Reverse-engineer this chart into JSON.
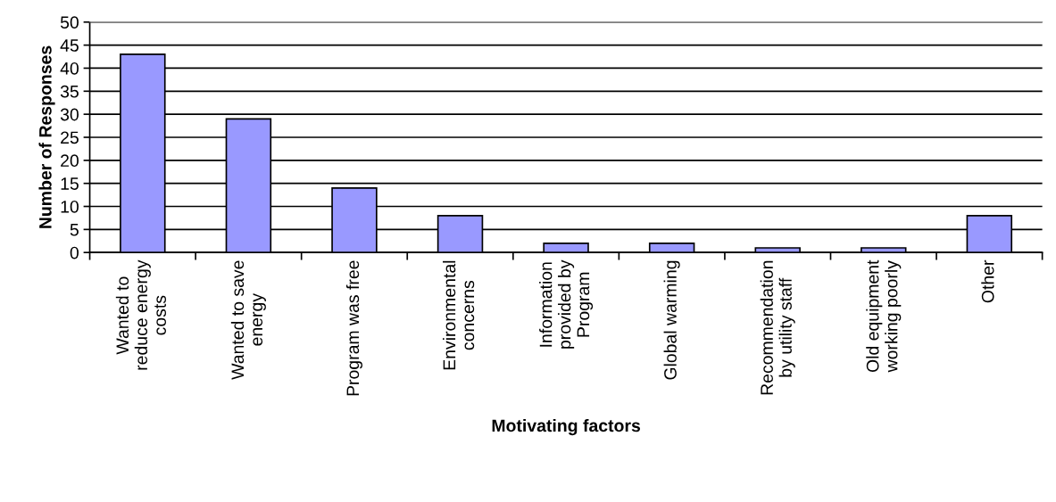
{
  "chart_data": {
    "type": "bar",
    "xlabel": "Motivating factors",
    "ylabel": "Number of Responses",
    "categories": [
      "Wanted to\nreduce energy\ncosts",
      "Wanted to save\nenergy",
      "Program was free",
      "Environmental\nconcerns",
      "Information\nprovided by\nProgram",
      "Global warming",
      "Recommendation\nby utility staff",
      "Old equipment\nworking poorly",
      "Other"
    ],
    "values": [
      43,
      29,
      14,
      8,
      2,
      2,
      1,
      1,
      8
    ],
    "color": "#9999ff",
    "ylim": [
      0,
      50
    ],
    "yticks": [
      0,
      5,
      10,
      15,
      20,
      25,
      30,
      35,
      40,
      45,
      50
    ],
    "grid": "y"
  }
}
